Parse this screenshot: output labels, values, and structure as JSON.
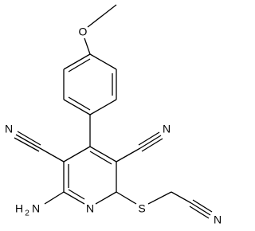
{
  "atoms": {
    "methoxy_o": "O",
    "nitrile_left_n": "N",
    "nitrile_right_n": "N",
    "amino": {
      "h": "H",
      "sub": "2",
      "n": "N"
    },
    "ring_n": "N",
    "sulfur": "S",
    "nitrile_side_n": "N"
  }
}
